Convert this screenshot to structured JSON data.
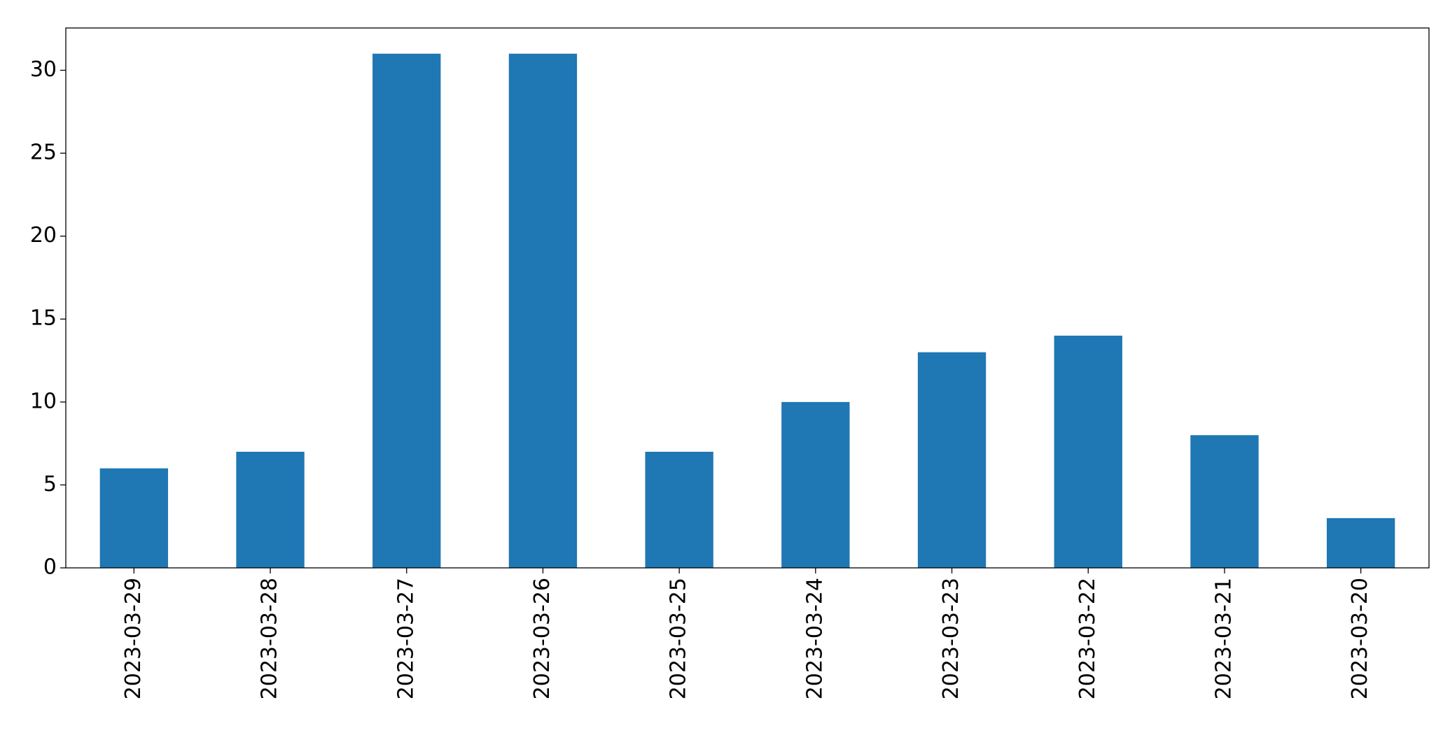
{
  "chart_data": {
    "type": "bar",
    "categories": [
      "2023-03-29",
      "2023-03-28",
      "2023-03-27",
      "2023-03-26",
      "2023-03-25",
      "2023-03-24",
      "2023-03-23",
      "2023-03-22",
      "2023-03-21",
      "2023-03-20"
    ],
    "values": [
      6,
      7,
      31,
      31,
      7,
      10,
      13,
      14,
      8,
      3
    ],
    "color": "#1f77b4",
    "ylim": [
      0,
      32.55
    ],
    "yticks": [
      0,
      5,
      10,
      15,
      20,
      25,
      30
    ],
    "grid": false
  }
}
